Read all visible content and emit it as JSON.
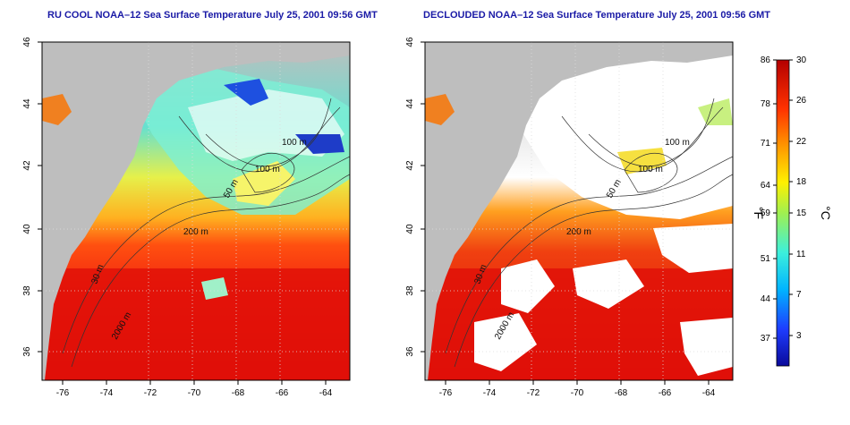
{
  "maps": [
    {
      "title": "RU COOL NOAA–12 Sea Surface Temperature July 25, 2001 09:56 GMT",
      "x_ticks": [
        "-76",
        "-74",
        "-72",
        "-70",
        "-68",
        "-66",
        "-64"
      ],
      "y_ticks": [
        "36",
        "38",
        "40",
        "42",
        "44",
        "46"
      ],
      "contour_labels": [
        "100 m",
        "100 m",
        "50 m",
        "200 m",
        "30 m",
        "2000 m"
      ]
    },
    {
      "title": "DECLOUDED NOAA–12 Sea Surface Temperature July 25, 2001 09:56 GMT",
      "x_ticks": [
        "-76",
        "-74",
        "-72",
        "-70",
        "-68",
        "-66",
        "-64"
      ],
      "y_ticks": [
        "36",
        "38",
        "40",
        "42",
        "44",
        "46"
      ],
      "contour_labels": [
        "100 m",
        "100 m",
        "50 m",
        "200 m",
        "30 m",
        "2000 m"
      ]
    }
  ],
  "colorbar": {
    "fahrenheit_ticks": [
      "86",
      "78",
      "71",
      "64",
      "59",
      "51",
      "44",
      "37"
    ],
    "celsius_ticks": [
      "30",
      "26",
      "22",
      "18",
      "15",
      "11",
      "7",
      "3"
    ],
    "fahrenheit_label": "°F",
    "celsius_label": "°C"
  },
  "colors": {
    "title": "#1a1aa6",
    "land": "#bebebe",
    "cloud": "#ffffff",
    "warm": "#e8170f",
    "hot": "#c80000",
    "cold": "#1010c0"
  }
}
